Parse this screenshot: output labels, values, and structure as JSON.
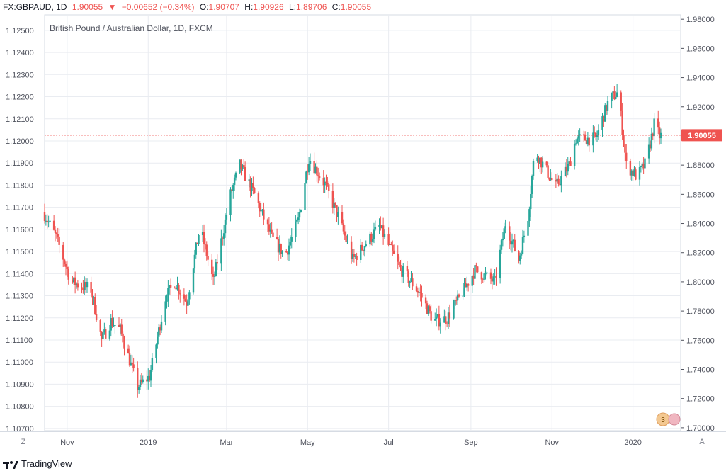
{
  "header": {
    "symbol": "FX:GBPAUD, 1D",
    "last": "1.90055",
    "arrow": "▼",
    "change": "−0.00652 (−0.34%)",
    "o_label": "O:",
    "o_val": "1.90707",
    "h_label": "H:",
    "h_val": "1.90926",
    "l_label": "L:",
    "l_val": "1.89706",
    "c_label": "C:",
    "c_val": "1.90055"
  },
  "corner_left": "Z",
  "corner_right": "A",
  "badge_text": "3",
  "footer": {
    "brand": "TradingView"
  },
  "colors": {
    "up": "#26a69a",
    "down": "#ef5350",
    "grid": "#e9ecf1",
    "axis": "#50535e",
    "priceLine": "#ef5350"
  },
  "chart_data": {
    "type": "candlestick",
    "title": "British Pound / Australian Dollar, 1D, FXCM",
    "x_labels": [
      "Nov",
      "2019",
      "Mar",
      "May",
      "Jul",
      "Sep",
      "Nov",
      "2020"
    ],
    "left_axis": {
      "ticks": [
        "1.12500",
        "1.12400",
        "1.12300",
        "1.12200",
        "1.12100",
        "1.12000",
        "1.11900",
        "1.11800",
        "1.11700",
        "1.11600",
        "1.11500",
        "1.11400",
        "1.11300",
        "1.11200",
        "1.11100",
        "1.11000",
        "1.10900",
        "1.10800",
        "1.10700"
      ],
      "range": [
        1.1069,
        1.1257
      ]
    },
    "right_axis": {
      "ticks": [
        "1.98000",
        "1.96000",
        "1.94000",
        "1.92000",
        "1.90000",
        "1.88000",
        "1.86000",
        "1.84000",
        "1.82000",
        "1.80000",
        "1.78000",
        "1.76000",
        "1.74000",
        "1.72000",
        "1.70000"
      ],
      "range": [
        1.698,
        1.983
      ]
    },
    "last_price": "1.90055",
    "last_value": 1.90055,
    "series_keypoints": [
      {
        "date": "2018-10-15",
        "price": 1.848
      },
      {
        "date": "2018-10-25",
        "price": 1.83
      },
      {
        "date": "2018-11-05",
        "price": 1.8
      },
      {
        "date": "2018-11-20",
        "price": 1.795
      },
      {
        "date": "2018-11-28",
        "price": 1.76
      },
      {
        "date": "2018-12-05",
        "price": 1.773
      },
      {
        "date": "2018-12-12",
        "price": 1.767
      },
      {
        "date": "2018-12-25",
        "price": 1.728
      },
      {
        "date": "2019-01-03",
        "price": 1.735
      },
      {
        "date": "2019-01-15",
        "price": 1.789
      },
      {
        "date": "2019-01-22",
        "price": 1.8
      },
      {
        "date": "2019-01-31",
        "price": 1.786
      },
      {
        "date": "2019-02-10",
        "price": 1.838
      },
      {
        "date": "2019-02-20",
        "price": 1.8
      },
      {
        "date": "2019-03-05",
        "price": 1.86
      },
      {
        "date": "2019-03-12",
        "price": 1.88
      },
      {
        "date": "2019-03-22",
        "price": 1.862
      },
      {
        "date": "2019-04-05",
        "price": 1.83
      },
      {
        "date": "2019-04-15",
        "price": 1.818
      },
      {
        "date": "2019-04-25",
        "price": 1.842
      },
      {
        "date": "2019-05-03",
        "price": 1.885
      },
      {
        "date": "2019-05-15",
        "price": 1.867
      },
      {
        "date": "2019-05-25",
        "price": 1.845
      },
      {
        "date": "2019-06-05",
        "price": 1.815
      },
      {
        "date": "2019-06-25",
        "price": 1.838
      },
      {
        "date": "2019-07-10",
        "price": 1.81
      },
      {
        "date": "2019-07-25",
        "price": 1.793
      },
      {
        "date": "2019-08-05",
        "price": 1.773
      },
      {
        "date": "2019-08-15",
        "price": 1.775
      },
      {
        "date": "2019-08-25",
        "price": 1.79
      },
      {
        "date": "2019-09-05",
        "price": 1.808
      },
      {
        "date": "2019-09-20",
        "price": 1.8
      },
      {
        "date": "2019-09-28",
        "price": 1.84
      },
      {
        "date": "2019-10-08",
        "price": 1.815
      },
      {
        "date": "2019-10-15",
        "price": 1.845
      },
      {
        "date": "2019-10-20",
        "price": 1.89
      },
      {
        "date": "2019-11-05",
        "price": 1.865
      },
      {
        "date": "2019-11-15",
        "price": 1.88
      },
      {
        "date": "2019-11-20",
        "price": 1.898
      },
      {
        "date": "2019-12-05",
        "price": 1.898
      },
      {
        "date": "2019-12-15",
        "price": 1.925
      },
      {
        "date": "2019-12-22",
        "price": 1.93
      },
      {
        "date": "2019-12-28",
        "price": 1.88
      },
      {
        "date": "2020-01-05",
        "price": 1.872
      },
      {
        "date": "2020-01-12",
        "price": 1.882
      },
      {
        "date": "2020-01-18",
        "price": 1.908
      },
      {
        "date": "2020-01-22",
        "price": 1.9
      }
    ]
  }
}
